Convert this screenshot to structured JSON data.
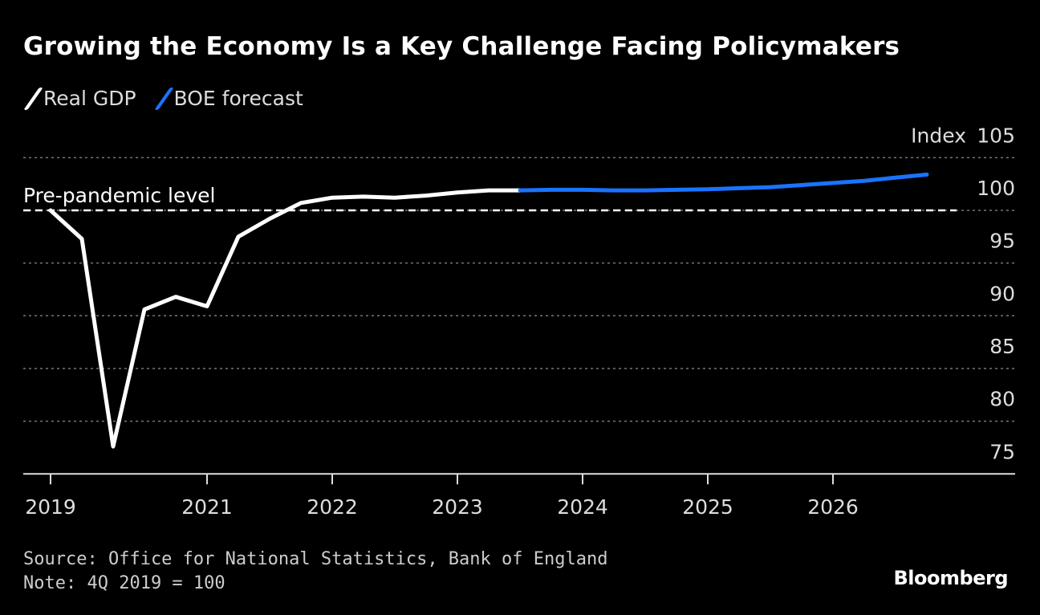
{
  "chart_data": {
    "type": "line",
    "title": "Growing the Economy Is a Key Challenge Facing Policymakers",
    "ylabel": "Index",
    "ylim": [
      75,
      105
    ],
    "yticks": [
      75,
      80,
      85,
      90,
      95,
      100,
      105
    ],
    "grid": true,
    "legend_placement": "top-left",
    "xticks": [
      {
        "label": "2019",
        "quarter": "2019Q4"
      },
      {
        "label": "2021",
        "quarter": "2021Q1"
      },
      {
        "label": "2022",
        "quarter": "2022Q1"
      },
      {
        "label": "2023",
        "quarter": "2023Q1"
      },
      {
        "label": "2024",
        "quarter": "2024Q1"
      },
      {
        "label": "2025",
        "quarter": "2025Q1"
      },
      {
        "label": "2026",
        "quarter": "2026Q1"
      }
    ],
    "reference_line": {
      "label": "Pre-pandemic level",
      "value": 100
    },
    "series": [
      {
        "name": "Real GDP",
        "color": "#ffffff",
        "x": [
          "2019Q4",
          "2020Q1",
          "2020Q2",
          "2020Q3",
          "2020Q4",
          "2021Q1",
          "2021Q2",
          "2021Q3",
          "2021Q4",
          "2022Q1",
          "2022Q2",
          "2022Q3",
          "2022Q4",
          "2023Q1",
          "2023Q2",
          "2023Q3"
        ],
        "values": [
          100,
          97.3,
          77.6,
          90.6,
          91.8,
          90.9,
          97.5,
          99.2,
          100.7,
          101.2,
          101.3,
          101.2,
          101.4,
          101.7,
          101.9,
          101.9
        ]
      },
      {
        "name": "BOE forecast",
        "color": "#1a73ff",
        "x": [
          "2023Q3",
          "2023Q4",
          "2024Q1",
          "2024Q2",
          "2024Q3",
          "2024Q4",
          "2025Q1",
          "2025Q2",
          "2025Q3",
          "2025Q4",
          "2026Q1",
          "2026Q2",
          "2026Q3",
          "2026Q4"
        ],
        "values": [
          101.9,
          101.95,
          101.95,
          101.9,
          101.9,
          101.95,
          102.0,
          102.1,
          102.2,
          102.4,
          102.6,
          102.8,
          103.1,
          103.4
        ]
      }
    ]
  },
  "footer": {
    "source": "Source: Office for National Statistics, Bank of England",
    "note": "Note: 4Q 2019 = 100",
    "logo": "Bloomberg"
  }
}
